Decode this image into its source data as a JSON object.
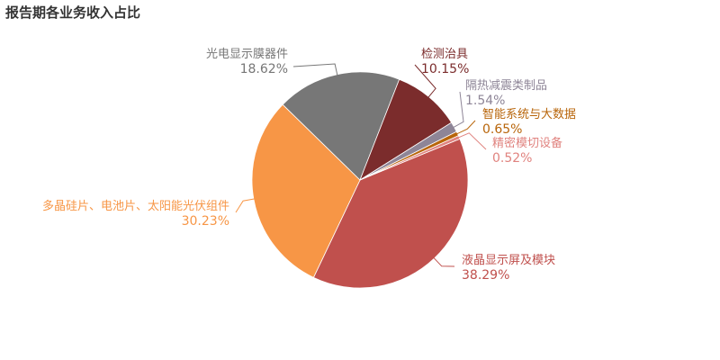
{
  "chart_data": {
    "type": "pie",
    "title": "报告期各业务收入占比",
    "slices": [
      {
        "name": "液晶显示屏及模块",
        "value": 38.29,
        "label": "38.29%",
        "color": "#c0504d",
        "side": "right"
      },
      {
        "name": "多晶硅片、电池片、太阳能光伏组件",
        "value": 30.23,
        "label": "30.23%",
        "color": "#f79646",
        "side": "left"
      },
      {
        "name": "光电显示膜器件",
        "value": 18.62,
        "label": "18.62%",
        "color": "#777777",
        "side": "left"
      },
      {
        "name": "检测治具",
        "value": 10.15,
        "label": "10.15%",
        "color": "#7b2c2c",
        "side": "right"
      },
      {
        "name": "隔热减震类制品",
        "value": 1.54,
        "label": "1.54%",
        "color": "#8e8597",
        "side": "right"
      },
      {
        "name": "智能系统与大数据",
        "value": 0.65,
        "label": "0.65%",
        "color": "#b8650a",
        "side": "right"
      },
      {
        "name": "精密模切设备",
        "value": 0.52,
        "label": "0.52%",
        "color": "#e0837f",
        "side": "right"
      }
    ]
  }
}
